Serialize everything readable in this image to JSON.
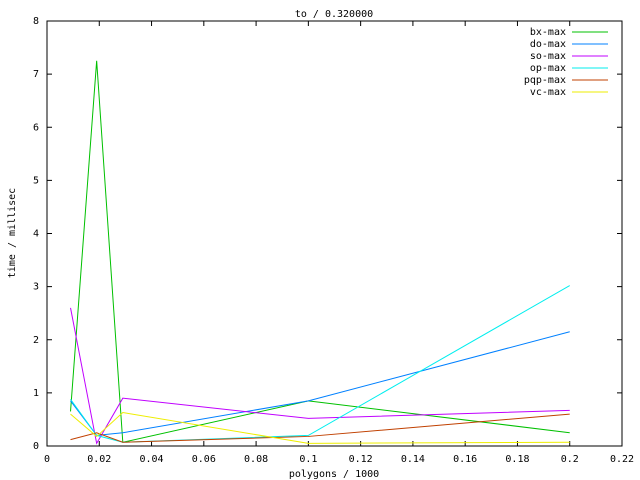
{
  "chart_data": {
    "type": "line",
    "title": "to / 0.320000",
    "x_label": "polygons / 1000",
    "y_label": "time / millisec",
    "x": [
      0.009,
      0.019,
      0.029,
      0.1,
      0.2
    ],
    "xlim": [
      0,
      0.22
    ],
    "ylim": [
      0,
      8
    ],
    "xticks": [
      0,
      0.02,
      0.04,
      0.06,
      0.08,
      0.1,
      0.12,
      0.14,
      0.16,
      0.18,
      0.2,
      0.22
    ],
    "yticks": [
      0,
      1,
      2,
      3,
      4,
      5,
      6,
      7,
      8
    ],
    "legend": "top-right",
    "series": [
      {
        "name": "bx-max",
        "color": "#00c000",
        "values": [
          0.65,
          7.25,
          0.07,
          0.85,
          0.25
        ]
      },
      {
        "name": "do-max",
        "color": "#0080ff",
        "values": [
          0.85,
          0.2,
          0.25,
          0.85,
          2.15
        ]
      },
      {
        "name": "so-max",
        "color": "#c000ff",
        "values": [
          2.6,
          0.05,
          0.9,
          0.52,
          0.67
        ]
      },
      {
        "name": "op-max",
        "color": "#00eeee",
        "values": [
          0.88,
          0.2,
          0.07,
          0.2,
          3.02
        ]
      },
      {
        "name": "pqp-max",
        "color": "#c04000",
        "values": [
          0.12,
          0.25,
          0.07,
          0.18,
          0.6
        ]
      },
      {
        "name": "vc-max",
        "color": "#eeee00",
        "values": [
          0.6,
          0.18,
          0.63,
          0.05,
          0.07
        ]
      }
    ]
  }
}
